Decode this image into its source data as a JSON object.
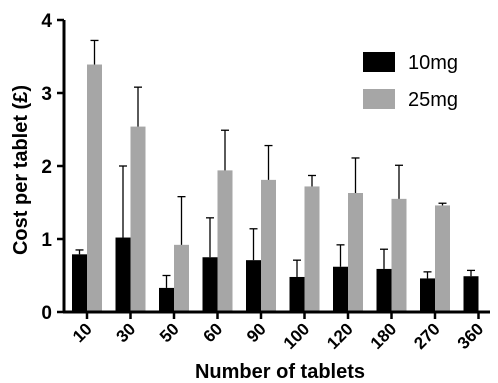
{
  "chart_data": {
    "type": "bar",
    "title": "",
    "xlabel": "Number of tablets",
    "ylabel": "Cost per tablet (£)",
    "ylim": [
      0,
      4
    ],
    "yticks": [
      0,
      1,
      2,
      3,
      4
    ],
    "categories": [
      "10",
      "30",
      "50",
      "60",
      "90",
      "100",
      "120",
      "180",
      "270",
      "360"
    ],
    "series": [
      {
        "name": "10mg",
        "color": "#000000",
        "values": [
          0.79,
          1.02,
          0.33,
          0.75,
          0.71,
          0.48,
          0.62,
          0.59,
          0.46,
          0.49
        ],
        "errors": [
          0.06,
          0.98,
          0.17,
          0.54,
          0.43,
          0.23,
          0.3,
          0.27,
          0.09,
          0.08
        ]
      },
      {
        "name": "25mg",
        "color": "#a6a6a6",
        "values": [
          3.39,
          2.54,
          0.92,
          1.94,
          1.81,
          1.72,
          1.63,
          1.55,
          1.46,
          null
        ],
        "errors": [
          0.33,
          0.54,
          0.66,
          0.55,
          0.47,
          0.15,
          0.48,
          0.46,
          0.03,
          null
        ]
      }
    ],
    "legend_position": "top-right",
    "grid": false
  }
}
